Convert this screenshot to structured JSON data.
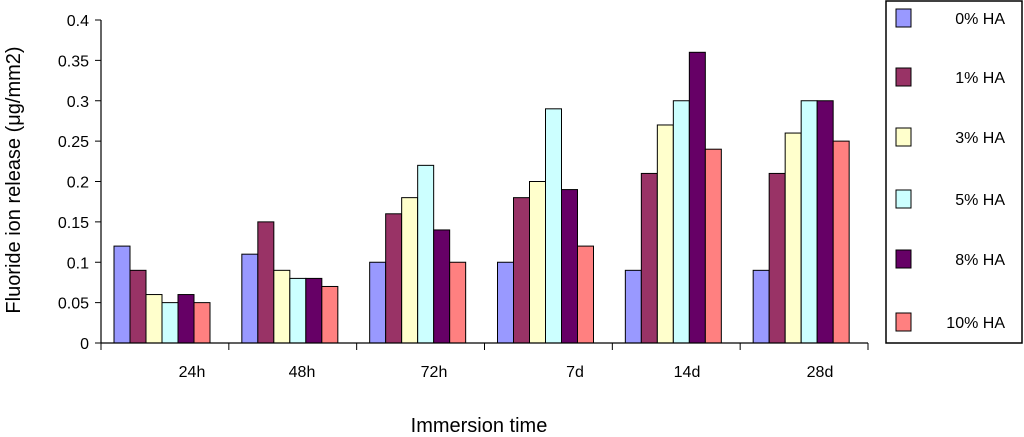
{
  "chart_data": {
    "type": "bar",
    "xlabel": "Immersion time",
    "ylabel": "Fluoride ion release (μg/mm2)",
    "categories": [
      "24h",
      "48h",
      "72h",
      "7d",
      "14d",
      "28d"
    ],
    "ylim": [
      0,
      0.4
    ],
    "yticks": [
      "0",
      "0.05",
      "0.1",
      "0.15",
      "0.2",
      "0.25",
      "0.3",
      "0.35",
      "0.4"
    ],
    "grid": false,
    "legend_position": "right",
    "series": [
      {
        "name": "0% HA",
        "color": "#9999ff",
        "values": [
          0.12,
          0.11,
          0.1,
          0.1,
          0.09,
          0.09
        ]
      },
      {
        "name": "1% HA",
        "color": "#993366",
        "values": [
          0.09,
          0.15,
          0.16,
          0.18,
          0.21,
          0.21
        ]
      },
      {
        "name": "3% HA",
        "color": "#ffffcc",
        "values": [
          0.06,
          0.09,
          0.18,
          0.2,
          0.27,
          0.26
        ]
      },
      {
        "name": "5% HA",
        "color": "#ccffff",
        "values": [
          0.05,
          0.08,
          0.22,
          0.29,
          0.3,
          0.3
        ]
      },
      {
        "name": "8% HA",
        "color": "#660066",
        "values": [
          0.06,
          0.08,
          0.14,
          0.19,
          0.36,
          0.3
        ]
      },
      {
        "name": "10% HA",
        "color": "#ff8080",
        "values": [
          0.05,
          0.07,
          0.1,
          0.12,
          0.24,
          0.25
        ]
      }
    ]
  }
}
